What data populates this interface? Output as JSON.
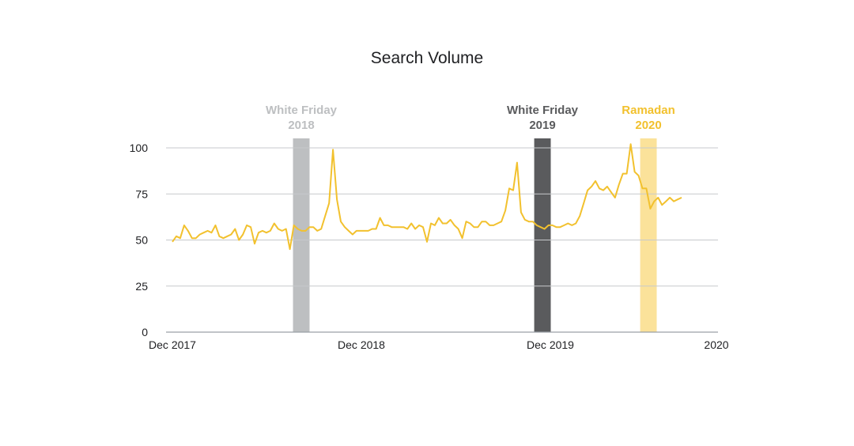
{
  "chart_data": {
    "type": "line",
    "title": "Search Volume",
    "xlabel": "",
    "ylabel": "",
    "ylim": [
      0,
      100
    ],
    "y_ticks": [
      0,
      25,
      50,
      75,
      100
    ],
    "x_ticks": [
      "Dec 2017",
      "Dec 2018",
      "Dec 2019",
      "2020"
    ],
    "grid": true,
    "line_color": "#F2C12E",
    "series": [
      {
        "values": [
          49,
          52,
          51,
          58,
          55,
          51,
          51,
          53,
          54,
          55,
          54,
          58,
          52,
          51,
          52,
          53,
          56,
          50,
          53,
          58,
          57,
          48,
          54,
          55,
          54,
          55,
          59,
          56,
          55,
          56,
          45,
          58,
          56,
          55,
          55,
          57,
          57,
          55,
          56,
          63,
          70,
          99,
          72,
          60,
          57,
          55,
          53,
          55,
          55,
          55,
          55,
          56,
          56,
          62,
          58,
          58,
          57,
          57,
          57,
          57,
          56,
          59,
          56,
          58,
          57,
          49,
          59,
          58,
          62,
          59,
          59,
          61,
          58,
          56,
          51,
          60,
          59,
          57,
          57,
          60,
          60,
          58,
          58,
          59,
          60,
          66,
          78,
          77,
          92,
          65,
          61,
          60,
          60,
          58,
          57,
          56,
          58,
          58,
          57,
          57,
          58,
          59,
          58,
          59,
          63,
          70,
          77,
          79,
          82,
          78,
          77,
          79,
          76,
          73,
          80,
          86,
          86,
          102,
          87,
          85,
          78,
          78,
          67,
          71,
          73,
          69,
          71,
          73,
          71,
          72,
          73
        ]
      }
    ],
    "highlights": [
      {
        "label_line1": "White Friday",
        "label_line2": "2018",
        "color": "#BDBFC1",
        "label_color": "#BDBFC1",
        "x_start": 0.23,
        "x_end": 0.26,
        "week_index": 41
      },
      {
        "label_line1": "White Friday",
        "label_line2": "2019",
        "color": "#5A5B5D",
        "label_color": "#5A5B5D",
        "x_start": 0.667,
        "x_end": 0.697,
        "week_index": 88
      },
      {
        "label_line1": "Ramadan",
        "label_line2": "2020",
        "color": "#FBE29A",
        "label_color": "#F2C12E",
        "x_start": 0.859,
        "x_end": 0.889,
        "week_index": 117
      }
    ]
  }
}
